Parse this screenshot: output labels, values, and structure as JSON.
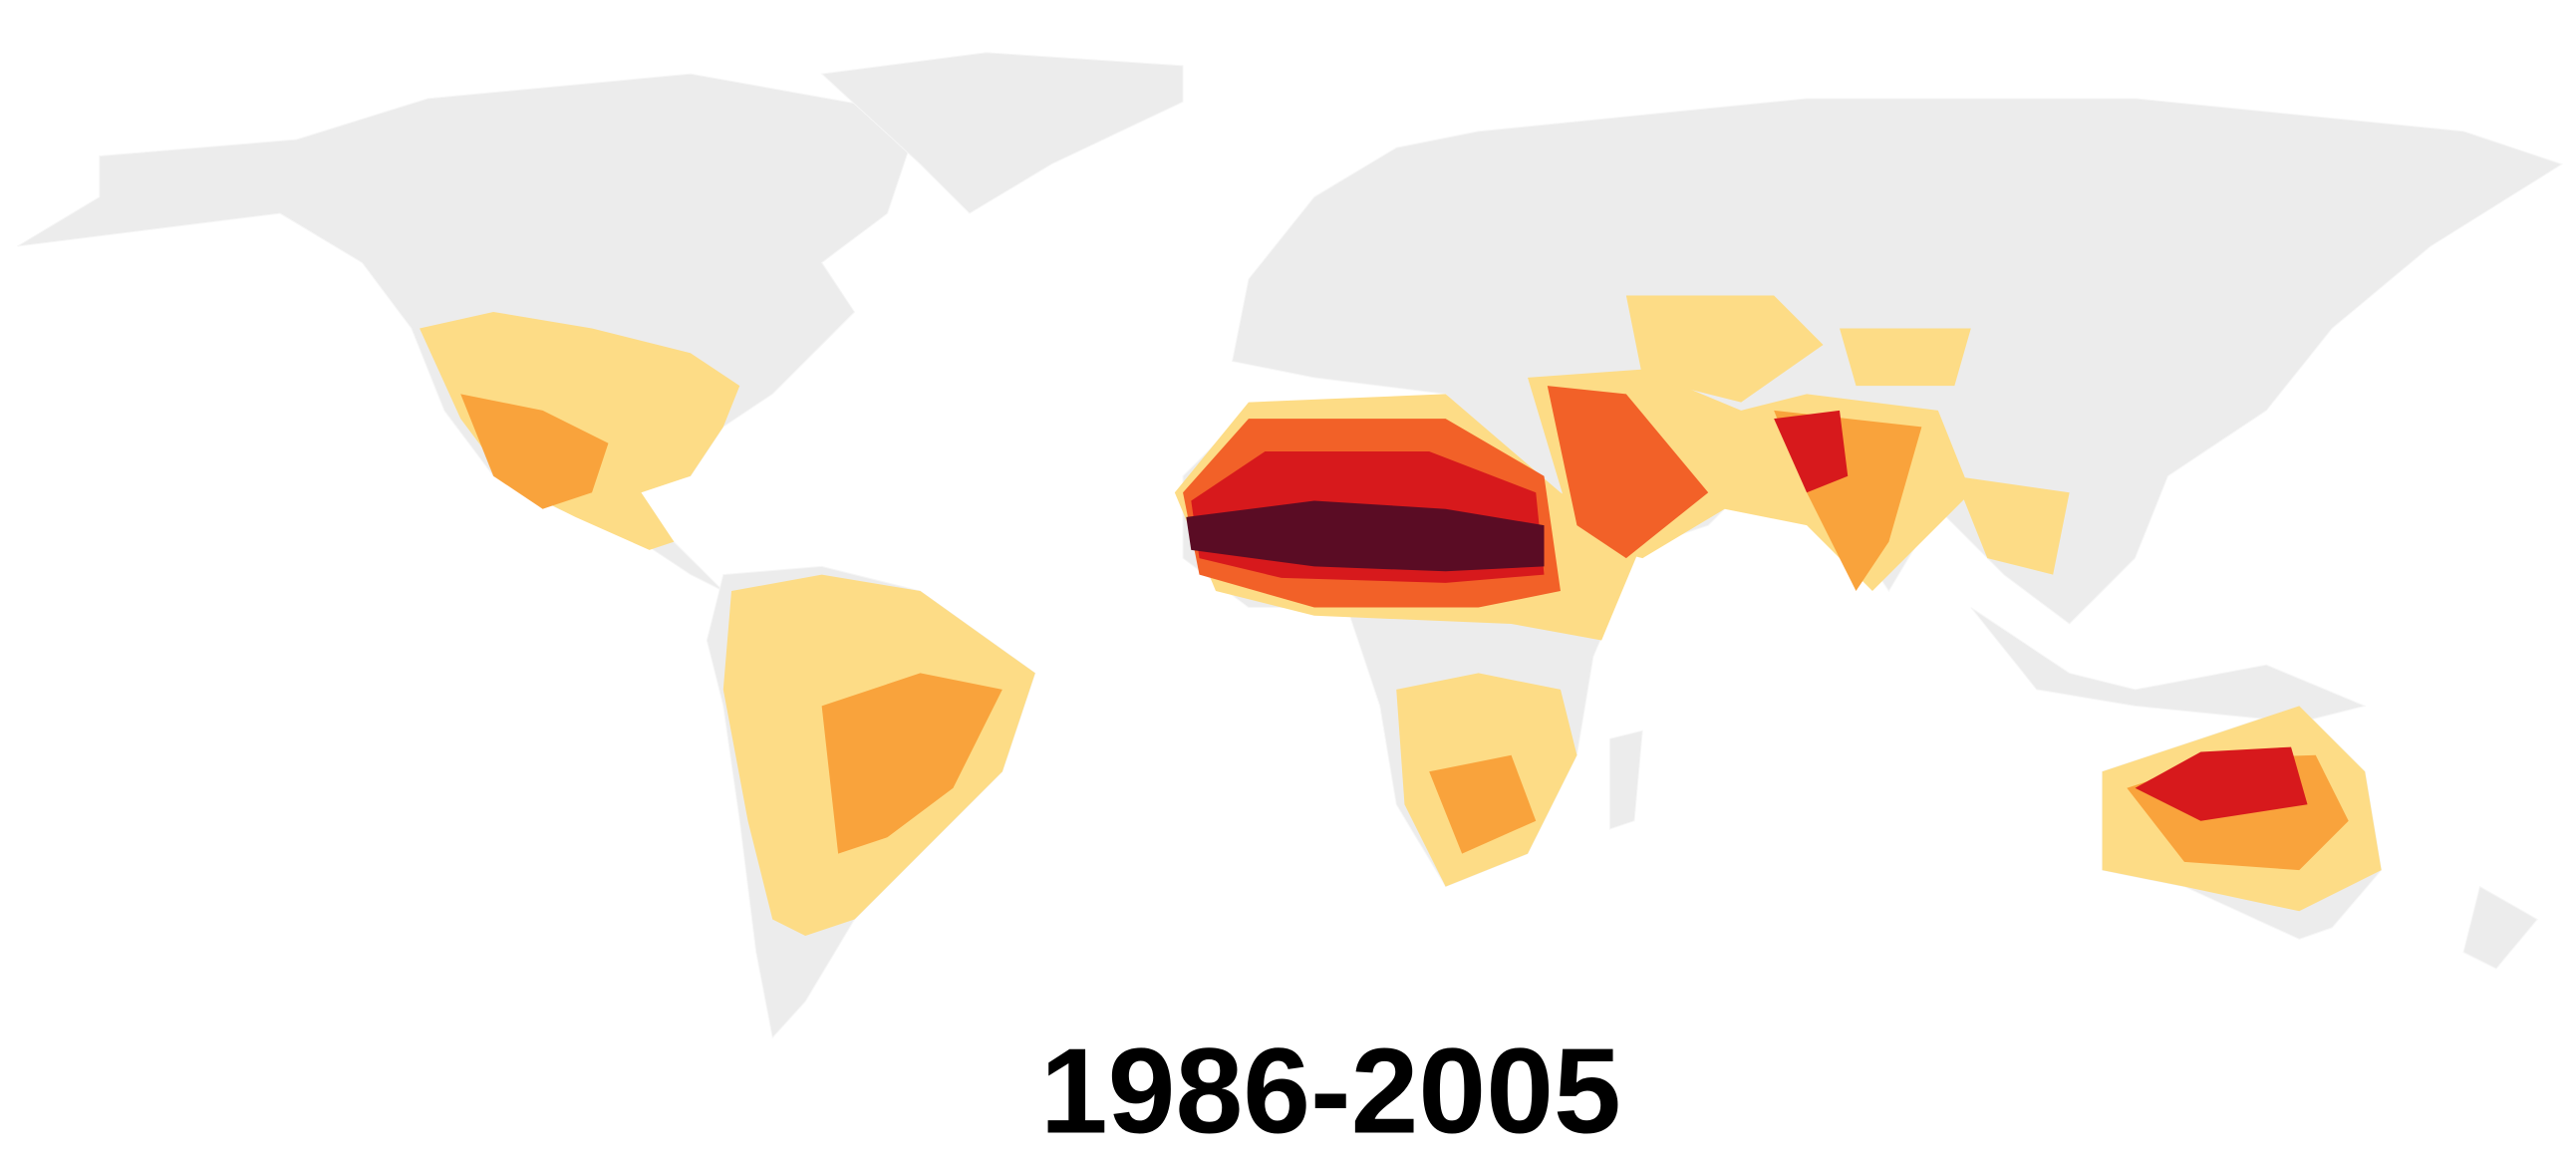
{
  "map": {
    "title": "1986-2005"
  }
}
